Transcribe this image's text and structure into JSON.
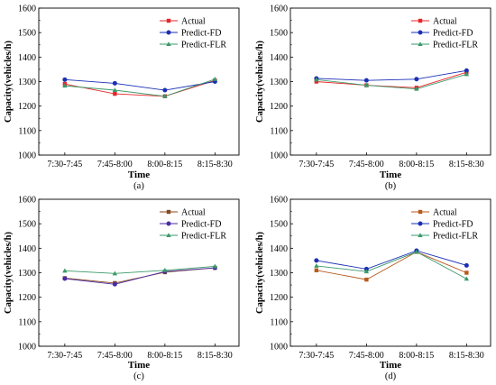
{
  "chart_data": [
    {
      "type": "line",
      "panel_label": "(a)",
      "categories": [
        "7:30-7:45",
        "7:45-8:00",
        "8:00-8:15",
        "8:15-8:30"
      ],
      "xlabel": "Time",
      "ylabel": "Capacity(vehicles/h)",
      "ylim": [
        1000,
        1600
      ],
      "yticks": [
        1000,
        1100,
        1200,
        1300,
        1400,
        1500,
        1600
      ],
      "legend_position": "top-right",
      "series": [
        {
          "name": "Actual",
          "color": "#e8262a",
          "marker": "square",
          "values": [
            1290,
            1250,
            1240,
            1305
          ]
        },
        {
          "name": "Predict-FD",
          "color": "#1a2fb5",
          "marker": "circle",
          "values": [
            1308,
            1293,
            1265,
            1300
          ]
        },
        {
          "name": "Predict-FLR",
          "color": "#3a9a6a",
          "marker": "triangle",
          "values": [
            1283,
            1265,
            1240,
            1310
          ]
        }
      ]
    },
    {
      "type": "line",
      "panel_label": "(b)",
      "categories": [
        "7:30-7:45",
        "7:45-8:00",
        "8:00-8:15",
        "8:15-8:30"
      ],
      "xlabel": "Time",
      "ylabel": "Capacity(vehicles/h)",
      "ylim": [
        1000,
        1600
      ],
      "yticks": [
        1000,
        1100,
        1200,
        1300,
        1400,
        1500,
        1600
      ],
      "legend_position": "top-right",
      "series": [
        {
          "name": "Actual",
          "color": "#e8262a",
          "marker": "square",
          "values": [
            1300,
            1285,
            1275,
            1338
          ]
        },
        {
          "name": "Predict-FD",
          "color": "#1a2fb5",
          "marker": "circle",
          "values": [
            1313,
            1305,
            1310,
            1345
          ]
        },
        {
          "name": "Predict-FLR",
          "color": "#3a9a6a",
          "marker": "triangle",
          "values": [
            1308,
            1285,
            1270,
            1330
          ]
        }
      ]
    },
    {
      "type": "line",
      "panel_label": "(c)",
      "categories": [
        "7:30-7:45",
        "7:45-8:00",
        "8:00-8:15",
        "8:15-8:30"
      ],
      "xlabel": "Time",
      "ylabel": "Capacity(vehicles/h)",
      "ylim": [
        1000,
        1600
      ],
      "yticks": [
        1000,
        1100,
        1200,
        1300,
        1400,
        1500,
        1600
      ],
      "legend_position": "top-right",
      "series": [
        {
          "name": "Actual",
          "color": "#8a4a1c",
          "marker": "square",
          "values": [
            1278,
            1258,
            1302,
            1320
          ]
        },
        {
          "name": "Predict-FD",
          "color": "#4a2aa5",
          "marker": "circle",
          "values": [
            1276,
            1253,
            1305,
            1320
          ]
        },
        {
          "name": "Predict-FLR",
          "color": "#3a9a6a",
          "marker": "triangle",
          "values": [
            1308,
            1297,
            1310,
            1326
          ]
        }
      ]
    },
    {
      "type": "line",
      "panel_label": "(d)",
      "categories": [
        "7:30-7:45",
        "7:45-8:00",
        "8:00-8:15",
        "8:15-8:30"
      ],
      "xlabel": "Time",
      "ylabel": "Capacity(vehicles/h)",
      "ylim": [
        1000,
        1600
      ],
      "yticks": [
        1000,
        1100,
        1200,
        1300,
        1400,
        1500,
        1600
      ],
      "legend_position": "top-right",
      "series": [
        {
          "name": "Actual",
          "color": "#b85a1c",
          "marker": "square",
          "values": [
            1310,
            1272,
            1385,
            1300
          ]
        },
        {
          "name": "Predict-FD",
          "color": "#1a2fb5",
          "marker": "circle",
          "values": [
            1350,
            1315,
            1390,
            1330
          ]
        },
        {
          "name": "Predict-FLR",
          "color": "#3a9a6a",
          "marker": "triangle",
          "values": [
            1328,
            1305,
            1385,
            1275
          ]
        }
      ]
    }
  ]
}
